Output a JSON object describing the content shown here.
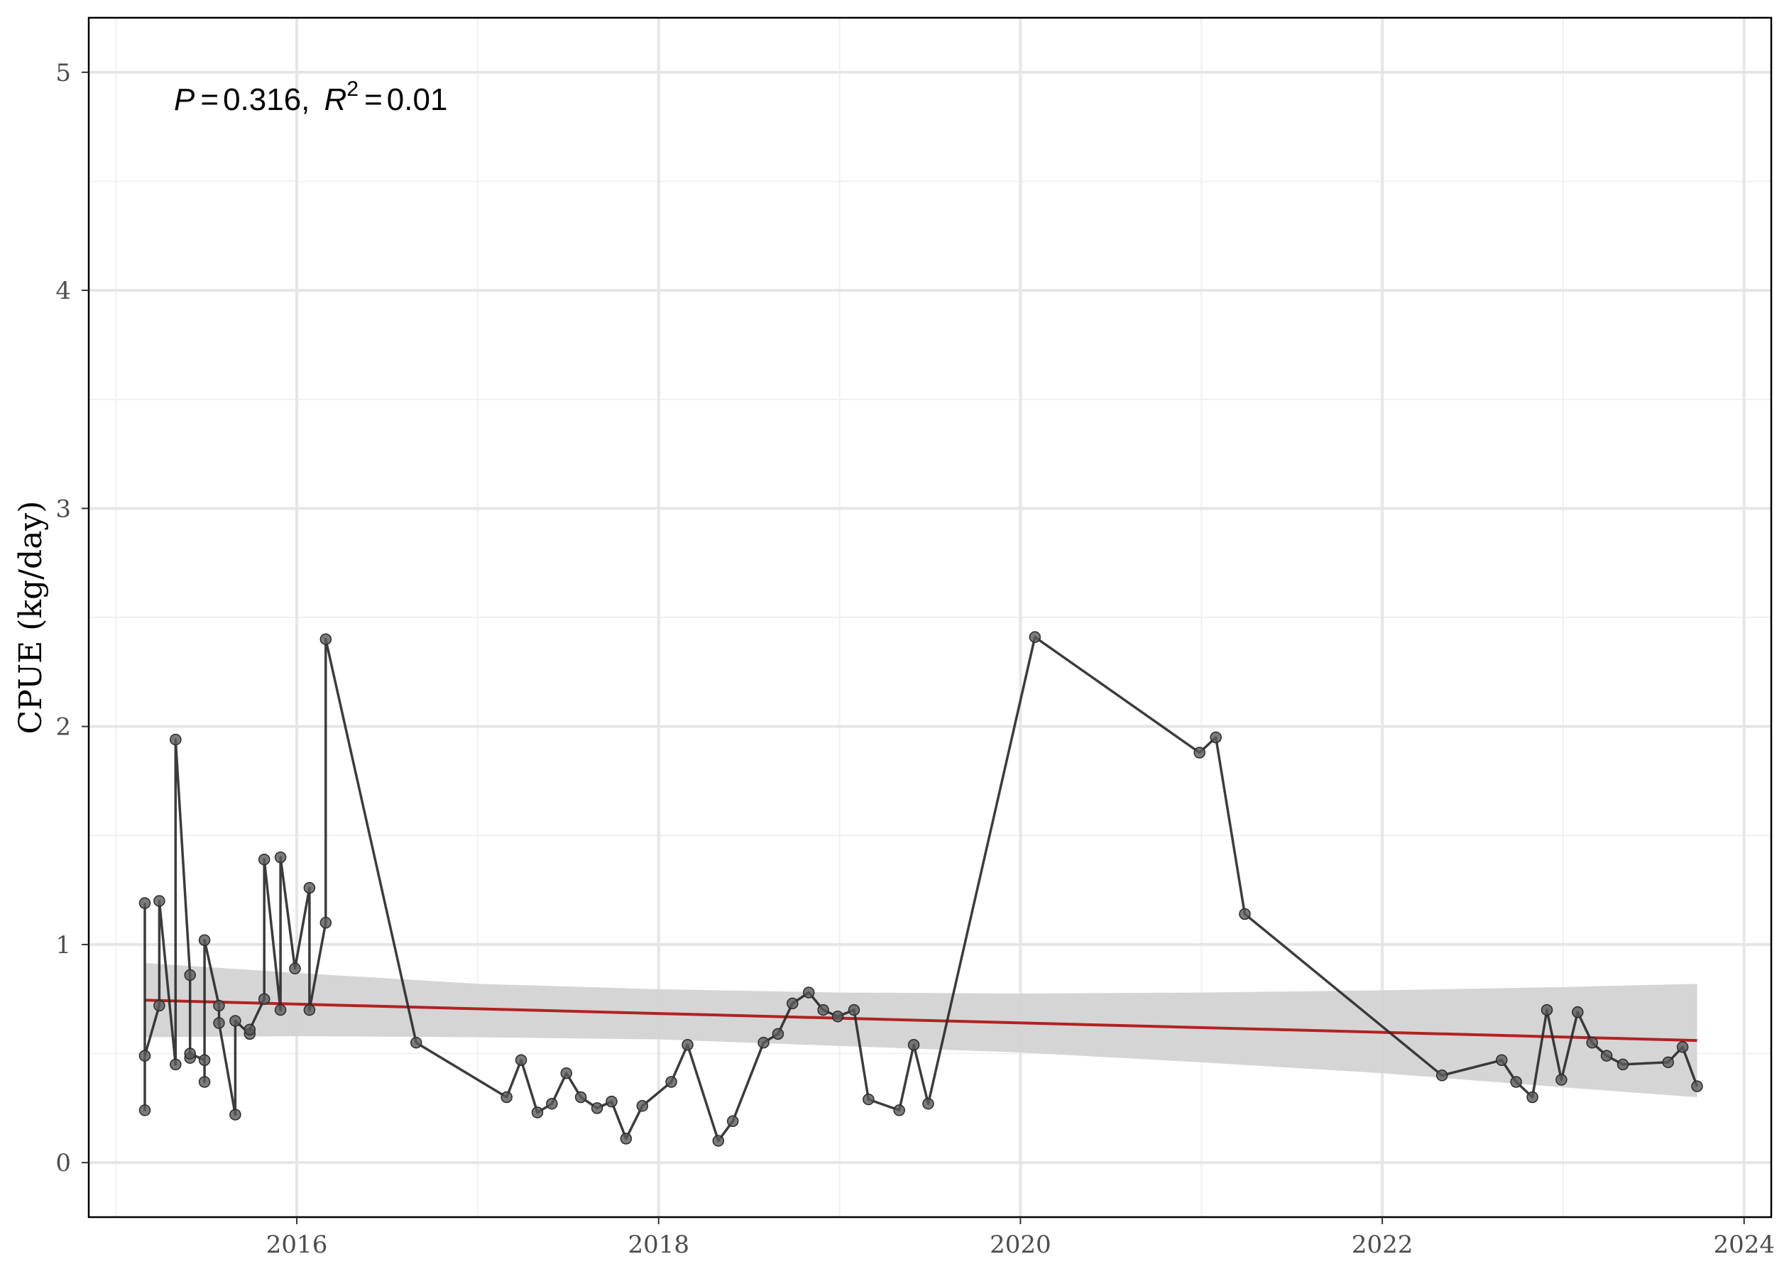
{
  "chart_data": {
    "type": "line",
    "title": "",
    "xlabel": "",
    "ylabel": "CPUE (kg/day)",
    "xlim": [
      2014.85,
      2024.15
    ],
    "ylim": [
      -0.25,
      5.25
    ],
    "x_ticks": [
      2016,
      2018,
      2020,
      2022,
      2024
    ],
    "x_tick_labels": [
      "2016",
      "2018",
      "2020",
      "2022",
      "2024"
    ],
    "y_ticks": [
      0,
      1,
      2,
      3,
      4,
      5
    ],
    "y_tick_labels": [
      "0",
      "1",
      "2",
      "3",
      "4",
      "5"
    ],
    "x_minor_gridlines": [
      2015,
      2017,
      2019,
      2021,
      2023
    ],
    "y_minor_gridlines": [
      0.5,
      1.5,
      2.5,
      3.5,
      4.5
    ],
    "grid": true,
    "annotation": {
      "p_label": "P",
      "p_value": "0.316",
      "r2_label": "R",
      "r2_sup": "2",
      "r2_value": "0.01"
    },
    "series": [
      {
        "type": "line+points",
        "x": [
          2015.16,
          2015.16,
          2015.16,
          2015.24,
          2015.24,
          2015.33,
          2015.33,
          2015.41,
          2015.41,
          2015.41,
          2015.49,
          2015.49,
          2015.49,
          2015.57,
          2015.57,
          2015.66,
          2015.66,
          2015.74,
          2015.74,
          2015.82,
          2015.82,
          2015.91,
          2015.91,
          2015.99,
          2016.07,
          2016.07,
          2016.16,
          2016.16,
          2016.66,
          2017.16,
          2017.24,
          2017.33,
          2017.41,
          2017.49,
          2017.57,
          2017.66,
          2017.74,
          2017.82,
          2017.91,
          2018.07,
          2018.16,
          2018.33,
          2018.41,
          2018.58,
          2018.66,
          2018.74,
          2018.83,
          2018.91,
          2018.99,
          2019.08,
          2019.16,
          2019.33,
          2019.41,
          2019.49,
          2020.08,
          2020.99,
          2021.08,
          2021.24,
          2022.33,
          2022.66,
          2022.74,
          2022.83,
          2022.91,
          2022.99,
          2023.08,
          2023.16,
          2023.24,
          2023.33,
          2023.58,
          2023.66,
          2023.74
        ],
        "y": [
          1.19,
          0.24,
          0.49,
          0.72,
          1.2,
          0.45,
          1.94,
          0.86,
          0.48,
          0.5,
          0.47,
          0.37,
          1.02,
          0.72,
          0.64,
          0.22,
          0.65,
          0.59,
          0.61,
          0.75,
          1.39,
          0.7,
          1.4,
          0.89,
          1.26,
          0.7,
          1.1,
          2.4,
          0.55,
          0.3,
          0.47,
          0.23,
          0.27,
          0.41,
          0.3,
          0.25,
          0.28,
          0.11,
          0.26,
          0.37,
          0.54,
          0.1,
          0.19,
          0.55,
          0.59,
          0.73,
          0.78,
          0.7,
          0.67,
          0.7,
          0.29,
          0.24,
          0.54,
          0.27,
          2.41,
          1.88,
          1.95,
          1.14,
          0.4,
          0.47,
          0.37,
          0.3,
          0.7,
          0.38,
          0.69,
          0.55,
          0.49,
          0.45,
          0.46,
          0.53,
          0.35
        ],
        "line_color": "#2b2b2b",
        "point_color": "#5a5a5a"
      }
    ],
    "fit": {
      "type": "linear",
      "x": [
        2015.16,
        2023.74
      ],
      "y": [
        0.745,
        0.56
      ],
      "color": "#b22222",
      "ci_color": "#d3d3d3",
      "ci_x": [
        2015.16,
        2016.0,
        2017.0,
        2018.0,
        2019.0,
        2020.0,
        2021.0,
        2022.0,
        2023.0,
        2023.74
      ],
      "ci_upper": [
        0.915,
        0.87,
        0.82,
        0.795,
        0.78,
        0.775,
        0.78,
        0.79,
        0.805,
        0.82
      ],
      "ci_lower": [
        0.575,
        0.58,
        0.575,
        0.565,
        0.535,
        0.505,
        0.46,
        0.41,
        0.345,
        0.3
      ]
    }
  }
}
